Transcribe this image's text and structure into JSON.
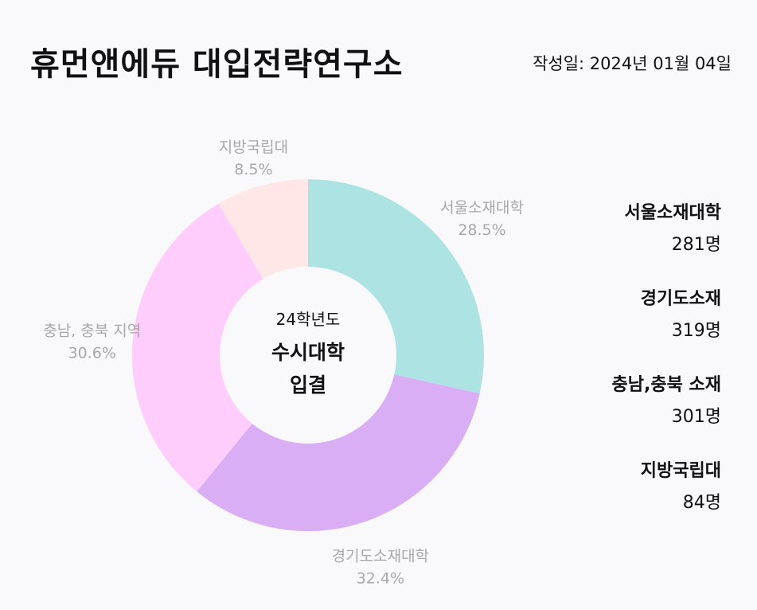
{
  "header": {
    "title": "휴먼앤에듀 대입전략연구소",
    "date_label": "작성일: 2024년 01월 04일"
  },
  "center": {
    "line1": "24학년도",
    "line2": "수시대학",
    "line3": "입결"
  },
  "chart_data": {
    "type": "pie",
    "donut": true,
    "slices": [
      {
        "label": "서울소재대학",
        "percent": 28.5,
        "percent_label": "28.5%",
        "color": "#ade4e3"
      },
      {
        "label": "경기도소재대학",
        "percent": 32.4,
        "percent_label": "32.4%",
        "color": "#d9aef5"
      },
      {
        "label": "충남, 충북 지역",
        "percent": 30.6,
        "percent_label": "30.6%",
        "color": "#ffcdfb"
      },
      {
        "label": "지방국립대",
        "percent": 8.5,
        "percent_label": "8.5%",
        "color": "#ffe7e8"
      }
    ]
  },
  "legend": {
    "items": [
      {
        "name": "서울소재대학",
        "count": "281명"
      },
      {
        "name": "경기도소재",
        "count": "319명"
      },
      {
        "name": "충남,충북 소재",
        "count": "301명"
      },
      {
        "name": "지방국립대",
        "count": "84명"
      }
    ]
  }
}
